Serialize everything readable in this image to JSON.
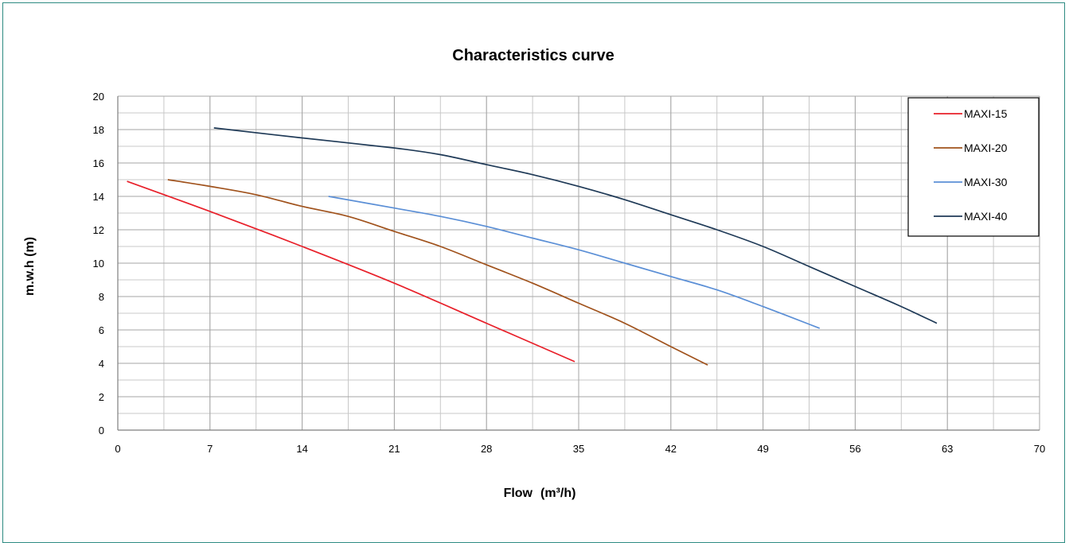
{
  "chart_data": {
    "type": "line",
    "title": "Characteristics curve",
    "xlabel": "Flow",
    "xlabel_unit": "(m³/h)",
    "ylabel": "m.w.h (m)",
    "xlim": [
      0,
      70
    ],
    "ylim": [
      0,
      20
    ],
    "x_ticks": [
      0,
      7,
      14,
      21,
      28,
      35,
      42,
      49,
      56,
      63,
      70
    ],
    "y_ticks": [
      0,
      2,
      4,
      6,
      8,
      10,
      12,
      14,
      16,
      18,
      20
    ],
    "grid": true,
    "legend_position": "top-right",
    "series": [
      {
        "name": "MAXI-15",
        "color": "#e8202a",
        "x": [
          0.7,
          7,
          14,
          21,
          28,
          34.7
        ],
        "y": [
          14.9,
          13.1,
          11.0,
          8.8,
          6.4,
          4.1
        ]
      },
      {
        "name": "MAXI-20",
        "color": "#a0521c",
        "x": [
          3.8,
          7,
          10.5,
          14,
          17.5,
          21,
          24.5,
          28,
          31.5,
          35,
          38.5,
          42,
          44.8
        ],
        "y": [
          15.0,
          14.6,
          14.1,
          13.4,
          12.8,
          11.9,
          11.0,
          9.9,
          8.8,
          7.6,
          6.4,
          5.0,
          3.9
        ]
      },
      {
        "name": "MAXI-30",
        "color": "#5b8fd6",
        "x": [
          16,
          21,
          24.5,
          28,
          31.5,
          35,
          38.5,
          42,
          45.5,
          49,
          53.3
        ],
        "y": [
          14.0,
          13.3,
          12.8,
          12.2,
          11.5,
          10.8,
          10.0,
          9.2,
          8.4,
          7.4,
          6.1
        ]
      },
      {
        "name": "MAXI-40",
        "color": "#1f3a57",
        "x": [
          7.3,
          14,
          21,
          24.5,
          28,
          31.5,
          35,
          38.5,
          42,
          45.5,
          49,
          52.5,
          56,
          59.5,
          62.2
        ],
        "y": [
          18.1,
          17.5,
          16.9,
          16.5,
          15.9,
          15.3,
          14.6,
          13.8,
          12.9,
          12.0,
          11.0,
          9.8,
          8.6,
          7.4,
          6.4
        ]
      }
    ]
  }
}
